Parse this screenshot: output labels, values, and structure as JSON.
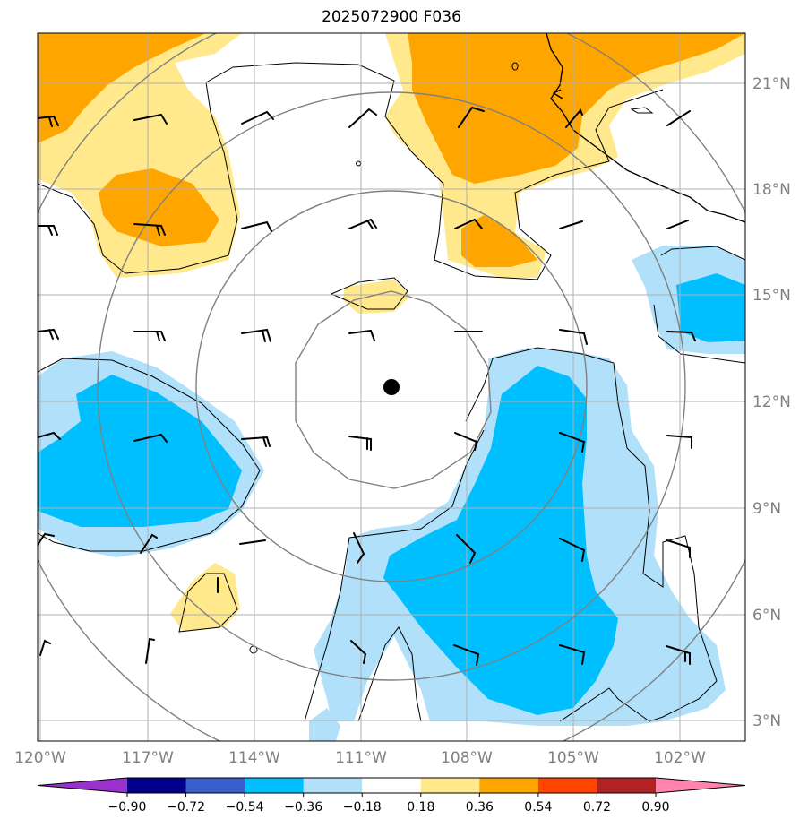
{
  "title": "2025072900 F036",
  "lat_labels": [
    "21°N",
    "18°N",
    "15°N",
    "12°N",
    "9°N",
    "6°N",
    "3°N"
  ],
  "lon_labels": [
    "120°W",
    "117°W",
    "114°W",
    "111°W",
    "108°W",
    "105°W",
    "102°W"
  ],
  "colorbar": {
    "ticks": [
      "−0.90",
      "−0.72",
      "−0.54",
      "−0.36",
      "−0.18",
      "0.18",
      "0.36",
      "0.54",
      "0.72",
      "0.90"
    ],
    "colors": [
      "#9932cc",
      "#00008b",
      "#3a5fcd",
      "#00bfff",
      "#b0e0fa",
      "#ffffff",
      "#ffe98c",
      "#ffa500",
      "#ff4500",
      "#b22222",
      "#ff85b0"
    ]
  },
  "colors": {
    "gridline": "#b0b0b0",
    "range_ring": "#808080",
    "coastline": "#000000",
    "center_marker": "#000000"
  },
  "center_marker": {
    "lon": -110.2,
    "lat": 12.4
  }
}
